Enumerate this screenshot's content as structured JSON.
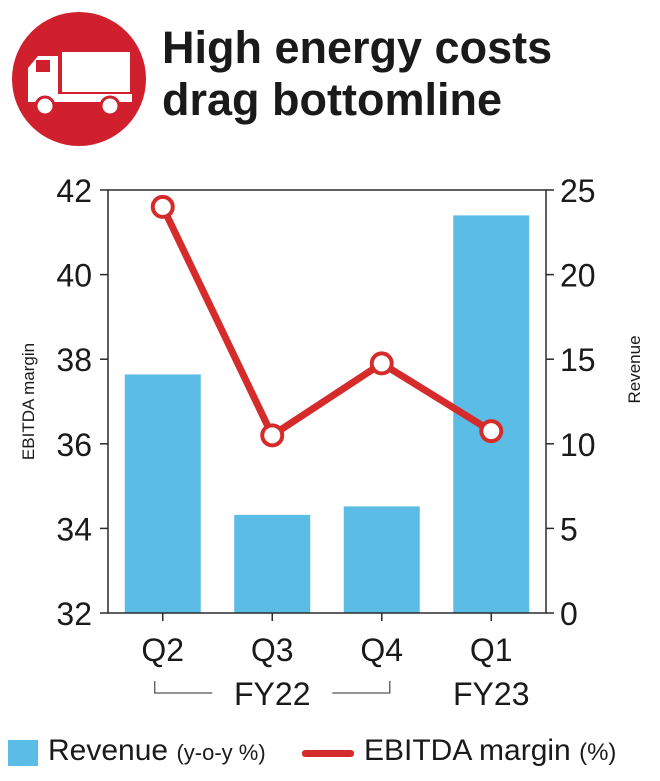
{
  "title_line1": "High energy costs",
  "title_line2": "drag bottomline",
  "logo_icon": "truck-icon",
  "colors": {
    "brand": "#d0202e",
    "bar": "#5bbde6",
    "line": "#d62b2b"
  },
  "chart_data": {
    "type": "bar",
    "categories": [
      "Q2",
      "Q3",
      "Q4",
      "Q1"
    ],
    "category_groups": [
      {
        "label": "FY22",
        "categories": [
          "Q2",
          "Q3",
          "Q4"
        ]
      },
      {
        "label": "FY23",
        "categories": [
          "Q1"
        ]
      }
    ],
    "series": [
      {
        "name": "Revenue",
        "axis": "right",
        "type": "bar",
        "values": [
          14.1,
          5.8,
          6.3,
          23.5
        ]
      },
      {
        "name": "EBITDA margin",
        "axis": "left",
        "type": "line",
        "values": [
          41.6,
          36.2,
          37.9,
          36.3
        ]
      }
    ],
    "left_axis": {
      "label": "EBITDA margin",
      "range": [
        32,
        42
      ],
      "ticks": [
        "32",
        "34",
        "36",
        "38",
        "40",
        "42"
      ]
    },
    "right_axis": {
      "label": "Revenue",
      "range": [
        0,
        25
      ],
      "ticks": [
        "0",
        "5",
        "10",
        "15",
        "20",
        "25"
      ]
    },
    "legend": {
      "position": "bottom",
      "items": [
        {
          "label": "Revenue",
          "suffix": "(y-o-y %)"
        },
        {
          "label": "EBITDA margin",
          "suffix": "(%)"
        }
      ]
    }
  }
}
